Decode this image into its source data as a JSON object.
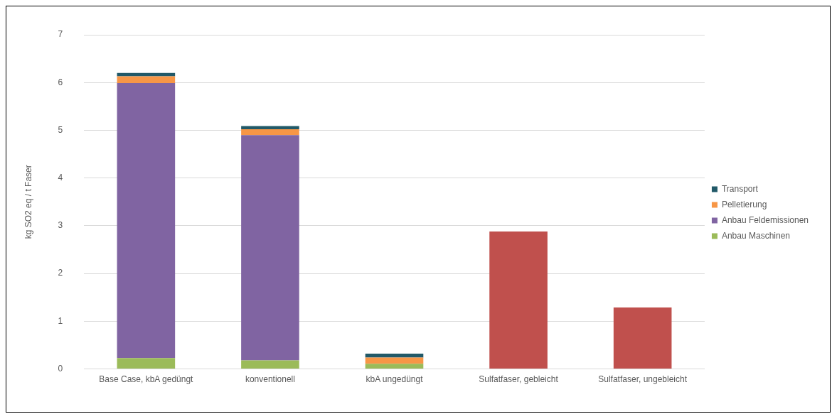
{
  "chart_data": {
    "type": "bar",
    "stacked": true,
    "ylabel": "kg SO2 eq / t Faser",
    "categories": [
      "Base Case, kbA gedüngt",
      "konventionell",
      "kbA ungedüngt",
      "Sulfatfaser, gebleicht",
      "Sulfatfaser, ungebleicht"
    ],
    "series": [
      {
        "name": "Anbau Maschinen",
        "color": "#9bbb59",
        "values": [
          0.23,
          0.18,
          0.11,
          null,
          null
        ]
      },
      {
        "name": "Anbau Feldemissionen",
        "color": "#8064a2",
        "values": [
          5.76,
          4.72,
          null,
          null,
          null
        ]
      },
      {
        "name": "Pelletierung",
        "color": "#f79646",
        "values": [
          0.14,
          0.12,
          0.13,
          null,
          null
        ]
      },
      {
        "name": "Transport",
        "color": "#215968",
        "values": [
          0.07,
          0.07,
          0.08,
          null,
          null
        ]
      },
      {
        "color": "#c0504d",
        "values": [
          null,
          null,
          null,
          2.88,
          1.29
        ]
      }
    ],
    "ylim": [
      0,
      7
    ],
    "yticks": [
      0,
      1,
      2,
      3,
      4,
      5,
      6,
      7
    ],
    "grid": "y",
    "legend": "right"
  }
}
